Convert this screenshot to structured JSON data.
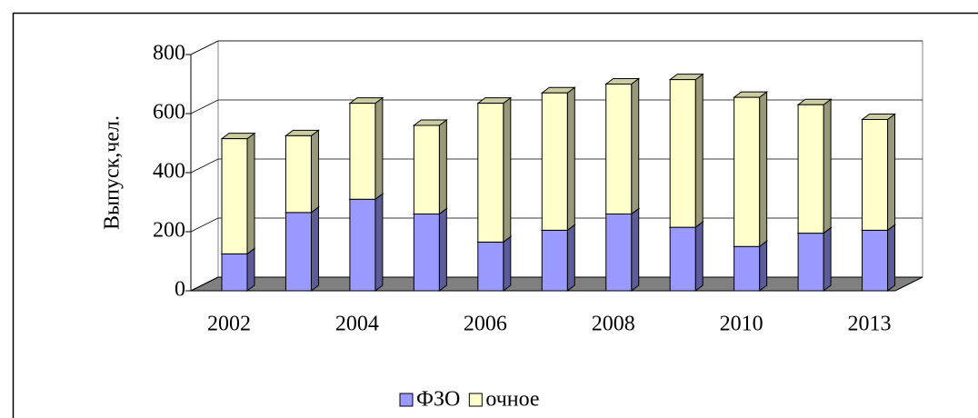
{
  "chart_data": {
    "type": "bar3d_stacked",
    "y_label": "Выпуск,чел.",
    "categories": [
      "2002",
      null,
      "2004",
      null,
      "2006",
      null,
      "2008",
      null,
      "2010",
      null,
      "2013"
    ],
    "series": [
      {
        "name": "ФЗО",
        "color": "#9999ff",
        "values": [
          125,
          265,
          310,
          260,
          165,
          205,
          260,
          215,
          150,
          195,
          205
        ]
      },
      {
        "name": "очное",
        "color": "#ffffcc",
        "values": [
          390,
          260,
          325,
          300,
          470,
          465,
          440,
          500,
          505,
          435,
          375
        ]
      }
    ],
    "ylim": [
      0,
      800
    ],
    "yticks": [
      0,
      200,
      400,
      600,
      800
    ],
    "grid": true,
    "legend": "bottom"
  }
}
